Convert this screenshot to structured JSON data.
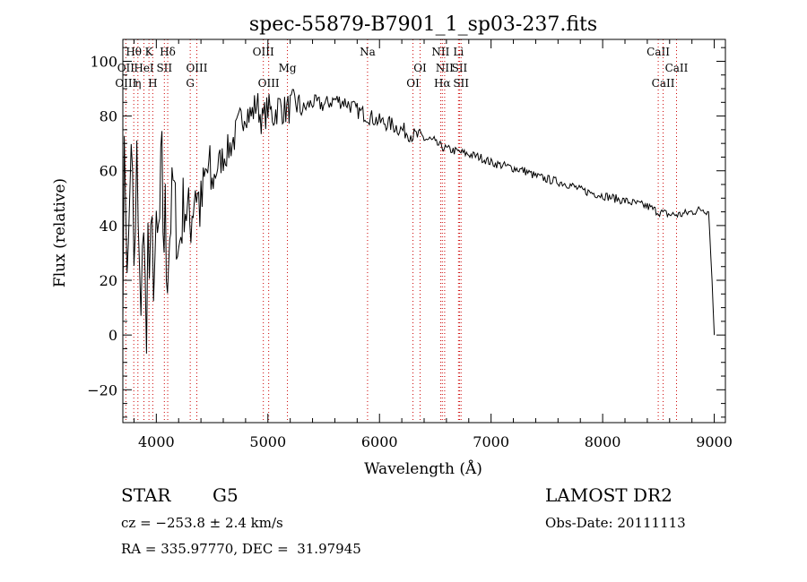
{
  "chart_data": {
    "type": "line",
    "title": "spec-55879-B7901_1_sp03-237.fits",
    "xlabel": "Wavelength (Å)",
    "ylabel": "Flux (relative)",
    "xlim": [
      3700,
      9100
    ],
    "ylim": [
      -32,
      108
    ],
    "xticks": [
      4000,
      5000,
      6000,
      7000,
      8000,
      9000
    ],
    "yticks": [
      -20,
      0,
      20,
      40,
      60,
      80,
      100
    ],
    "xtick_labels": [
      "4000",
      "5000",
      "6000",
      "7000",
      "8000",
      "9000"
    ],
    "ytick_labels": [
      "−20",
      "0",
      "20",
      "40",
      "60",
      "80",
      "100"
    ],
    "grid": false,
    "series": [
      {
        "x": [
          3700,
          3725,
          3750,
          3775,
          3800,
          3825,
          3850,
          3875,
          3900,
          3925,
          3950,
          3975,
          4000,
          4050,
          4100,
          4150,
          4200,
          4250,
          4300,
          4350,
          4400,
          4450,
          4500,
          4550,
          4600,
          4650,
          4700,
          4750,
          4800,
          4850,
          4900,
          4950,
          5000,
          5050,
          5100,
          5150,
          5200,
          5250,
          5300,
          5400,
          5500,
          5600,
          5700,
          5800,
          5900,
          6000,
          6100,
          6200,
          6300,
          6400,
          6500,
          6600,
          6700,
          6800,
          6900,
          7000,
          7100,
          7200,
          7300,
          7400,
          7500,
          7600,
          7700,
          7800,
          7900,
          8000,
          8100,
          8200,
          8300,
          8400,
          8500,
          8600,
          8700,
          8800,
          8900,
          8950,
          8980,
          9000
        ],
        "y": [
          35,
          60,
          20,
          80,
          10,
          60,
          5,
          40,
          10,
          30,
          15,
          35,
          20,
          50,
          25,
          55,
          30,
          50,
          40,
          55,
          45,
          60,
          55,
          62,
          65,
          68,
          72,
          78,
          82,
          80,
          85,
          78,
          83,
          80,
          84,
          82,
          83,
          85,
          82,
          85,
          84,
          86,
          85,
          82,
          80,
          78,
          77,
          75,
          73,
          72,
          70,
          68,
          67,
          66,
          65,
          63,
          62,
          61,
          60,
          58,
          57,
          56,
          55,
          53,
          52,
          51,
          50,
          49,
          48,
          47,
          45,
          44,
          44,
          45,
          46,
          45,
          20,
          0
        ]
      }
    ],
    "spectral_lines": [
      {
        "label": "Hθ",
        "x": 3798,
        "row": 0
      },
      {
        "label": "K",
        "x": 3934,
        "row": 0
      },
      {
        "label": "Hδ",
        "x": 4102,
        "row": 0
      },
      {
        "label": "OIII",
        "x": 4959,
        "row": 0
      },
      {
        "label": "Na",
        "x": 5893,
        "row": 0
      },
      {
        "label": "NII",
        "x": 6548,
        "row": 0
      },
      {
        "label": "Li",
        "x": 6708,
        "row": 0
      },
      {
        "label": "CaII",
        "x": 8498,
        "row": 0
      },
      {
        "label": "OII",
        "x": 3727,
        "row": 1
      },
      {
        "label": "HeI",
        "x": 3889,
        "row": 1
      },
      {
        "label": "SII",
        "x": 4072,
        "row": 1
      },
      {
        "label": "OIII",
        "x": 4363,
        "row": 1
      },
      {
        "label": "Mg",
        "x": 5175,
        "row": 1
      },
      {
        "label": "OI",
        "x": 6364,
        "row": 1
      },
      {
        "label": "NII",
        "x": 6584,
        "row": 1
      },
      {
        "label": "SII",
        "x": 6717,
        "row": 1
      },
      {
        "label": "CaII",
        "x": 8662,
        "row": 1
      },
      {
        "label": "OIII",
        "x": 3727,
        "row": 2
      },
      {
        "label": "η",
        "x": 3835,
        "row": 2
      },
      {
        "label": "H",
        "x": 3968,
        "row": 2
      },
      {
        "label": "G",
        "x": 4304,
        "row": 2
      },
      {
        "label": "OIII",
        "x": 5007,
        "row": 2
      },
      {
        "label": "OI",
        "x": 6300,
        "row": 2
      },
      {
        "label": "Hα",
        "x": 6563,
        "row": 2
      },
      {
        "label": "SII",
        "x": 6731,
        "row": 2
      },
      {
        "label": "CaII",
        "x": 8542,
        "row": 2
      }
    ]
  },
  "info": {
    "object_class": "STAR",
    "subclass": "G5",
    "survey": "LAMOST DR2",
    "redshift": "cz = −253.8 ± 2.4 km/s",
    "obs_date": "Obs-Date: 20111113",
    "coords": "RA = 335.97770, DEC =  31.97945"
  },
  "colors": {
    "line": "#000000",
    "marker_line": "#cc0000",
    "axes": "#000000",
    "background": "#ffffff"
  }
}
